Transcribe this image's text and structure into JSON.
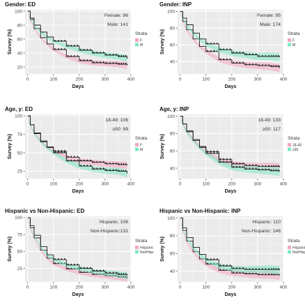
{
  "chart_data": [
    {
      "type": "line",
      "title": "Gender: ED",
      "xlabel": "Days",
      "ylabel": "Survey (%)",
      "xlim": [
        -10,
        400
      ],
      "ylim": [
        10,
        102
      ],
      "xticks": [
        0,
        100,
        200,
        300,
        400
      ],
      "yticks": [
        20,
        40,
        60,
        80,
        100
      ],
      "grid": true,
      "legend": {
        "title": "Strata",
        "placement": "right",
        "labels": [
          "F",
          "M"
        ]
      },
      "annotations": [
        "Female: 86",
        "Male: 141"
      ],
      "series": [
        {
          "name": "F",
          "color": "#f4a6bd",
          "x": [
            0,
            10,
            25,
            50,
            75,
            100,
            150,
            200,
            250,
            300,
            350,
            385
          ],
          "y": [
            100,
            88,
            75,
            62,
            53,
            45,
            35,
            29,
            26,
            25,
            24,
            22
          ]
        },
        {
          "name": "M",
          "color": "#7fe6c6",
          "x": [
            0,
            10,
            25,
            50,
            75,
            100,
            150,
            200,
            250,
            300,
            350,
            385
          ],
          "y": [
            100,
            90,
            80,
            70,
            63,
            57,
            50,
            44,
            40,
            37,
            35,
            32
          ]
        }
      ]
    },
    {
      "type": "line",
      "title": "Gender: INP",
      "xlabel": "Days",
      "ylabel": "Survey (%)",
      "xlim": [
        -10,
        400
      ],
      "ylim": [
        25,
        102
      ],
      "xticks": [
        0,
        100,
        200,
        300,
        400
      ],
      "yticks": [
        40,
        60,
        80,
        100
      ],
      "grid": true,
      "legend": {
        "title": "Strata",
        "placement": "right",
        "labels": [
          "F",
          "M"
        ]
      },
      "annotations": [
        "Female: 95",
        "Male: 174"
      ],
      "series": [
        {
          "name": "F",
          "color": "#f4a6bd",
          "x": [
            0,
            10,
            25,
            50,
            75,
            100,
            150,
            200,
            250,
            300,
            350,
            385
          ],
          "y": [
            100,
            88,
            78,
            67,
            58,
            52,
            42,
            38,
            36,
            35,
            34,
            32
          ]
        },
        {
          "name": "M",
          "color": "#7fe6c6",
          "x": [
            0,
            10,
            25,
            50,
            75,
            100,
            150,
            200,
            250,
            300,
            350,
            385
          ],
          "y": [
            100,
            92,
            84,
            74,
            67,
            61,
            54,
            50,
            48,
            46,
            46,
            45
          ]
        }
      ]
    },
    {
      "type": "line",
      "title": "Age, y: ED",
      "xlabel": "Days",
      "ylabel": "Survey (%)",
      "xlim": [
        -10,
        400
      ],
      "ylim": [
        15,
        102
      ],
      "xticks": [
        0,
        100,
        200,
        300,
        400
      ],
      "yticks": [
        25,
        50,
        75,
        100
      ],
      "grid": true,
      "legend": {
        "title": "Strata",
        "placement": "right",
        "labels": [
          "F",
          "M"
        ]
      },
      "annotations": [
        "18-49: 106",
        "≥50: 99"
      ],
      "series": [
        {
          "name": "F",
          "color": "#f4a6bd",
          "x": [
            0,
            10,
            25,
            50,
            75,
            100,
            150,
            200,
            250,
            300,
            350,
            385
          ],
          "y": [
            100,
            88,
            77,
            66,
            58,
            52,
            44,
            39,
            37,
            35,
            34,
            33
          ]
        },
        {
          "name": "M",
          "color": "#7fe6c6",
          "x": [
            0,
            10,
            25,
            50,
            75,
            100,
            150,
            200,
            250,
            300,
            350,
            385
          ],
          "y": [
            100,
            88,
            76,
            65,
            57,
            50,
            39,
            32,
            28,
            26,
            25,
            22
          ]
        }
      ]
    },
    {
      "type": "line",
      "title": "Age, y: INP",
      "xlabel": "Days",
      "ylabel": "Survey (%)",
      "xlim": [
        -10,
        400
      ],
      "ylim": [
        28,
        102
      ],
      "xticks": [
        0,
        100,
        200,
        300,
        400
      ],
      "yticks": [
        40,
        60,
        80,
        100
      ],
      "grid": true,
      "legend": {
        "title": "Strata",
        "placement": "right",
        "labels": [
          "18-49",
          "≥50"
        ]
      },
      "annotations": [
        "18-49: 133",
        "≥50: 117"
      ],
      "series": [
        {
          "name": "18-49",
          "color": "#f4a6bd",
          "x": [
            0,
            10,
            25,
            50,
            75,
            100,
            150,
            200,
            250,
            300,
            350,
            385
          ],
          "y": [
            100,
            91,
            83,
            73,
            65,
            59,
            50,
            45,
            43,
            42,
            42,
            41
          ]
        },
        {
          "name": "≥50",
          "color": "#7fe6c6",
          "x": [
            0,
            10,
            25,
            50,
            75,
            100,
            150,
            200,
            250,
            300,
            350,
            385
          ],
          "y": [
            100,
            91,
            82,
            72,
            64,
            57,
            47,
            41,
            39,
            38,
            37,
            36
          ]
        }
      ]
    },
    {
      "type": "line",
      "title": "Hispanic vs Non-Hispanic: ED",
      "xlabel": "Days",
      "ylabel": "Survey (%)",
      "xlim": [
        -10,
        400
      ],
      "ylim": [
        5,
        102
      ],
      "xticks": [
        0,
        100,
        200,
        300,
        400
      ],
      "yticks": [
        25,
        50,
        75,
        100
      ],
      "grid": true,
      "legend": {
        "title": "Strata",
        "placement": "right",
        "labels": [
          "Hispanic",
          "NonHisp"
        ]
      },
      "annotations": [
        "Hispanic: 106",
        "Non-Hispanic:131"
      ],
      "series": [
        {
          "name": "Hispanic",
          "color": "#f4a6bd",
          "x": [
            0,
            10,
            25,
            50,
            75,
            100,
            150,
            200,
            250,
            300,
            350,
            385
          ],
          "y": [
            100,
            85,
            70,
            52,
            40,
            32,
            24,
            19,
            16,
            14,
            12,
            10
          ]
        },
        {
          "name": "NonHisp",
          "color": "#7fe6c6",
          "x": [
            0,
            10,
            25,
            50,
            75,
            100,
            150,
            200,
            250,
            300,
            350,
            385
          ],
          "y": [
            100,
            88,
            74,
            57,
            45,
            38,
            30,
            25,
            21,
            18,
            16,
            14
          ]
        }
      ]
    },
    {
      "type": "line",
      "title": "Hispanic vs Non-Hispanic: INP",
      "xlabel": "Days",
      "ylabel": "Survey (%)",
      "xlim": [
        -10,
        400
      ],
      "ylim": [
        28,
        102
      ],
      "xticks": [
        0,
        100,
        200,
        300,
        400
      ],
      "yticks": [
        40,
        60,
        80,
        100
      ],
      "grid": true,
      "legend": {
        "title": "Strata",
        "placement": "right",
        "labels": [
          "Hispanic",
          "NonHisp"
        ]
      },
      "annotations": [
        "Hispanic: 110",
        "Non-Hispanic: 146"
      ],
      "series": [
        {
          "name": "Hispanic",
          "color": "#f4a6bd",
          "x": [
            0,
            10,
            25,
            50,
            75,
            100,
            150,
            200,
            250,
            300,
            350,
            385
          ],
          "y": [
            100,
            86,
            74,
            62,
            54,
            48,
            41,
            38,
            37,
            36,
            36,
            35
          ]
        },
        {
          "name": "NonHisp",
          "color": "#7fe6c6",
          "x": [
            0,
            10,
            25,
            50,
            75,
            100,
            150,
            200,
            250,
            300,
            350,
            385
          ],
          "y": [
            100,
            89,
            78,
            67,
            59,
            53,
            46,
            43,
            42,
            42,
            42,
            41
          ]
        }
      ]
    }
  ]
}
